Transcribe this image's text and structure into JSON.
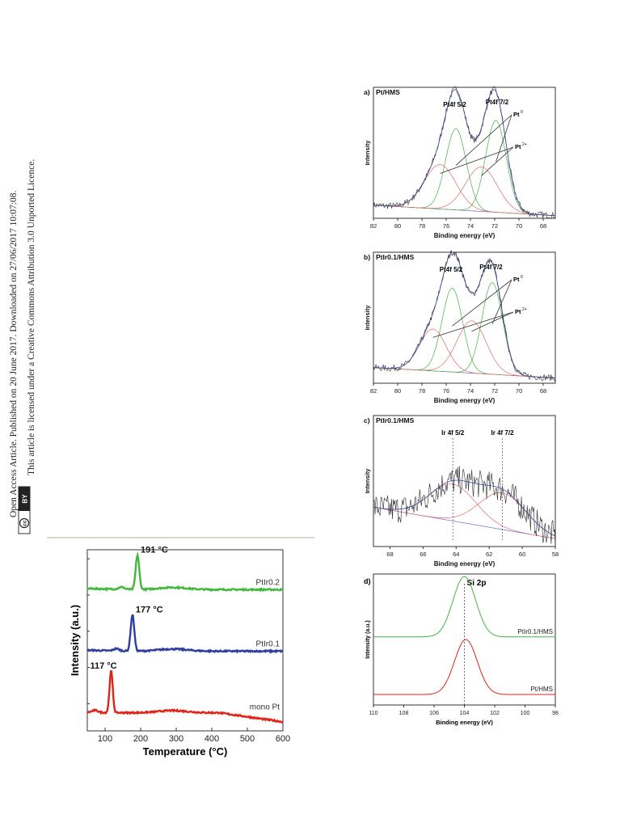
{
  "notice": {
    "line1": "Open Access Article. Published on 20 June 2017. Downloaded on 27/06/2017 10:07:08.",
    "line2": "This article is licensed under a Creative Commons Attribution 3.0 Unported Licence.",
    "badge_cc": "cc",
    "badge_by": "BY"
  },
  "colors": {
    "raw": "#2a2a2a",
    "envelope": "#3a4aa0",
    "pt0": "#44b044",
    "pt2": "#e06a6a",
    "background": "#6a6ad0",
    "green": "#41b83c",
    "blue": "#2c3fa0",
    "red": "#e2231a"
  },
  "chart_data": [
    {
      "id": "a",
      "type": "line",
      "panel_label": "a)",
      "panel_title": "Pt/HMS",
      "xlabel": "Binding energy (eV)",
      "ylabel": "Intensity",
      "xlim": [
        82,
        67
      ],
      "xticks": [
        82,
        80,
        78,
        76,
        74,
        72,
        70,
        68
      ],
      "annotations": [
        {
          "text": "Pt4f 5/2",
          "x": 75.3
        },
        {
          "text": "Pt4f 7/2",
          "x": 71.8
        },
        {
          "text": "Pt",
          "sup": "0"
        },
        {
          "text": "Pt",
          "sup": "2+"
        }
      ],
      "components": [
        {
          "role": "pt0",
          "peaks": [
            {
              "center": 75.2,
              "height": 0.62,
              "width": 0.85
            },
            {
              "center": 71.9,
              "height": 0.7,
              "width": 0.85
            }
          ]
        },
        {
          "role": "pt2",
          "peaks": [
            {
              "center": 76.5,
              "height": 0.34,
              "width": 1.3
            },
            {
              "center": 73.1,
              "height": 0.34,
              "width": 1.3
            }
          ]
        }
      ],
      "baseline": [
        0.1,
        0.02
      ]
    },
    {
      "id": "b",
      "type": "line",
      "panel_label": "b)",
      "panel_title": "PtIr0.1/HMS",
      "xlabel": "Binding energy (eV)",
      "ylabel": "Intensity",
      "xlim": [
        82,
        67
      ],
      "xticks": [
        82,
        80,
        78,
        76,
        74,
        72,
        70,
        68
      ],
      "annotations": [
        {
          "text": "Pt4f 5/2",
          "x": 75.6
        },
        {
          "text": "Pt4f 7/2",
          "x": 72.3
        },
        {
          "text": "Pt",
          "sup": "0"
        },
        {
          "text": "Pt",
          "sup": "2+"
        }
      ],
      "components": [
        {
          "role": "pt0",
          "peaks": [
            {
              "center": 75.5,
              "height": 0.64,
              "width": 0.85
            },
            {
              "center": 72.2,
              "height": 0.7,
              "width": 0.85
            }
          ]
        },
        {
          "role": "pt2",
          "peaks": [
            {
              "center": 77.1,
              "height": 0.32,
              "width": 1.1
            },
            {
              "center": 73.9,
              "height": 0.4,
              "width": 1.2
            }
          ]
        }
      ],
      "baseline": [
        0.12,
        0.04
      ]
    },
    {
      "id": "c",
      "type": "line",
      "panel_label": "c)",
      "panel_title": "PtIr0.1/HMS",
      "xlabel": "Binding energy (eV)",
      "ylabel": "Intensity",
      "xlim": [
        69,
        58
      ],
      "xticks": [
        68,
        66,
        64,
        62,
        60,
        58
      ],
      "annotations": [
        {
          "text": "Ir 4f 5/2",
          "x": 64.2
        },
        {
          "text": "Ir 4f 7/2",
          "x": 61.2
        }
      ],
      "components": [
        {
          "role": "pt2",
          "peaks": [
            {
              "center": 64.2,
              "height": 0.28,
              "width": 1.4
            },
            {
              "center": 61.2,
              "height": 0.28,
              "width": 1.4
            }
          ]
        }
      ],
      "baseline": [
        0.3,
        0.06
      ]
    },
    {
      "id": "d",
      "type": "line",
      "panel_label": "d)",
      "panel_title": "Si 2p",
      "xlabel": "Binding energy (eV)",
      "ylabel": "Intensity (a.u.)",
      "xlim": [
        110,
        98
      ],
      "xticks": [
        110,
        108,
        106,
        104,
        102,
        100,
        98
      ],
      "reference_line_x": 104,
      "series": [
        {
          "name": "PtIr0.1/HMS",
          "color": "green",
          "center": 104.0,
          "width": 0.75,
          "offset": 0.52,
          "height": 0.46
        },
        {
          "name": "Pt/HMS",
          "color": "red",
          "center": 103.9,
          "width": 0.75,
          "offset": 0.08,
          "height": 0.42
        }
      ]
    },
    {
      "id": "tpr",
      "type": "line",
      "xlabel": "Temperature (°C)",
      "ylabel": "Intensity (a.u.)",
      "xlim": [
        50,
        600
      ],
      "xticks": [
        100,
        200,
        300,
        400,
        500,
        600
      ],
      "series": [
        {
          "name": "PtIr0.2",
          "color": "green",
          "offset": 0.78,
          "peak_x": 191,
          "peak_label": "191 °C",
          "peak_height": 0.19,
          "peak_width": 5
        },
        {
          "name": "PtIr0.1",
          "color": "blue",
          "offset": 0.44,
          "peak_x": 177,
          "peak_label": "177 °C",
          "peak_height": 0.2,
          "peak_width": 5
        },
        {
          "name": "mono Pt",
          "color": "red",
          "offset": 0.1,
          "peak_x": 117,
          "peak_label": "117 °C",
          "peak_height": 0.23,
          "peak_width": 4.5
        }
      ]
    }
  ]
}
